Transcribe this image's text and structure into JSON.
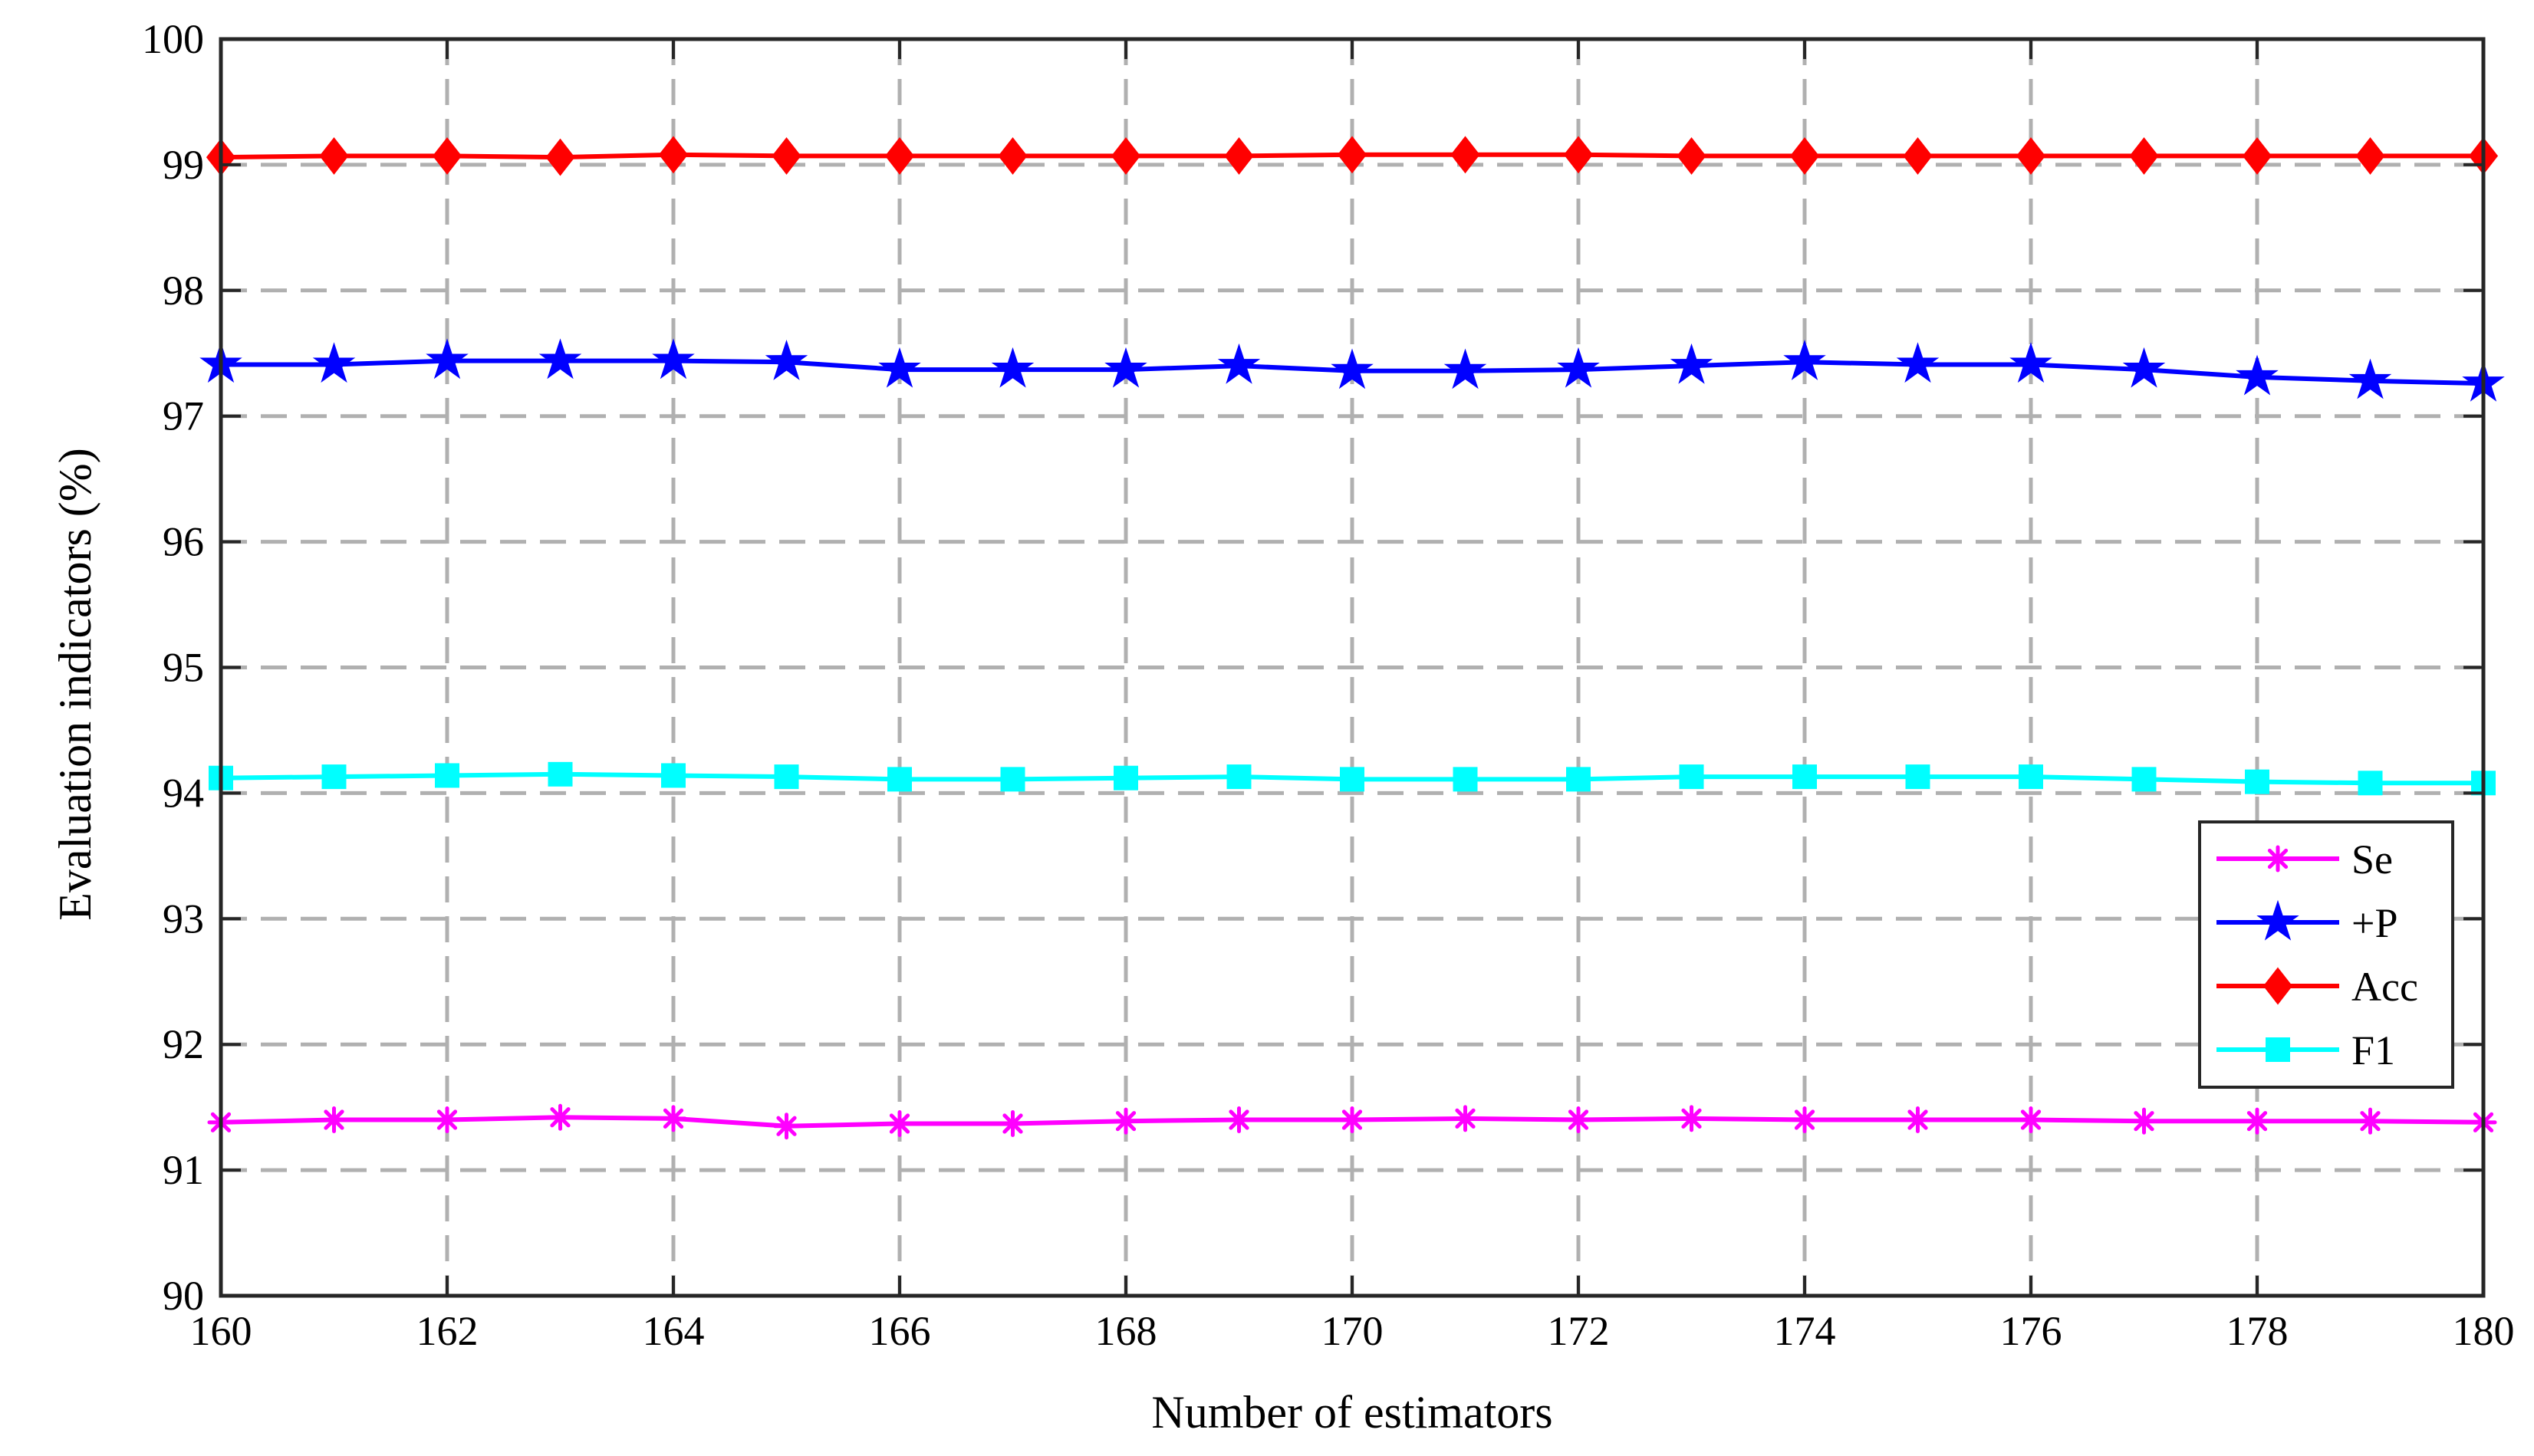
{
  "chart_data": {
    "type": "line",
    "title": "",
    "xlabel": "Number of estimators",
    "ylabel": "Evaluation indicators (%)",
    "xlim": [
      160,
      180
    ],
    "ylim": [
      90,
      100
    ],
    "x_ticks": [
      160,
      162,
      164,
      166,
      168,
      170,
      172,
      174,
      176,
      178,
      180
    ],
    "y_ticks": [
      90,
      91,
      92,
      93,
      94,
      95,
      96,
      97,
      98,
      99,
      100
    ],
    "grid": true,
    "legend_position": "lower-right",
    "x": [
      160,
      161,
      162,
      163,
      164,
      165,
      166,
      167,
      168,
      169,
      170,
      171,
      172,
      173,
      174,
      175,
      176,
      177,
      178,
      179,
      180
    ],
    "series": [
      {
        "name": "Se",
        "color": "#ff00ff",
        "marker": "asterisk",
        "values": [
          91.38,
          91.4,
          91.4,
          91.42,
          91.41,
          91.35,
          91.37,
          91.37,
          91.39,
          91.4,
          91.4,
          91.41,
          91.4,
          91.41,
          91.4,
          91.4,
          91.4,
          91.39,
          91.39,
          91.39,
          91.38
        ]
      },
      {
        "name": "+P",
        "color": "#0000ff",
        "marker": "star",
        "values": [
          97.41,
          97.41,
          97.44,
          97.44,
          97.44,
          97.43,
          97.37,
          97.37,
          97.37,
          97.4,
          97.36,
          97.36,
          97.37,
          97.4,
          97.43,
          97.41,
          97.41,
          97.37,
          97.31,
          97.28,
          97.26
        ]
      },
      {
        "name": "Acc",
        "color": "#ff0000",
        "marker": "diamond",
        "values": [
          99.06,
          99.07,
          99.07,
          99.06,
          99.08,
          99.07,
          99.07,
          99.07,
          99.07,
          99.07,
          99.08,
          99.08,
          99.08,
          99.07,
          99.07,
          99.07,
          99.07,
          99.07,
          99.07,
          99.07,
          99.07
        ]
      },
      {
        "name": "F1",
        "color": "#00ffff",
        "marker": "square",
        "values": [
          94.12,
          94.13,
          94.14,
          94.15,
          94.14,
          94.13,
          94.11,
          94.11,
          94.12,
          94.13,
          94.11,
          94.11,
          94.11,
          94.13,
          94.13,
          94.13,
          94.13,
          94.11,
          94.09,
          94.08,
          94.08
        ]
      }
    ]
  }
}
